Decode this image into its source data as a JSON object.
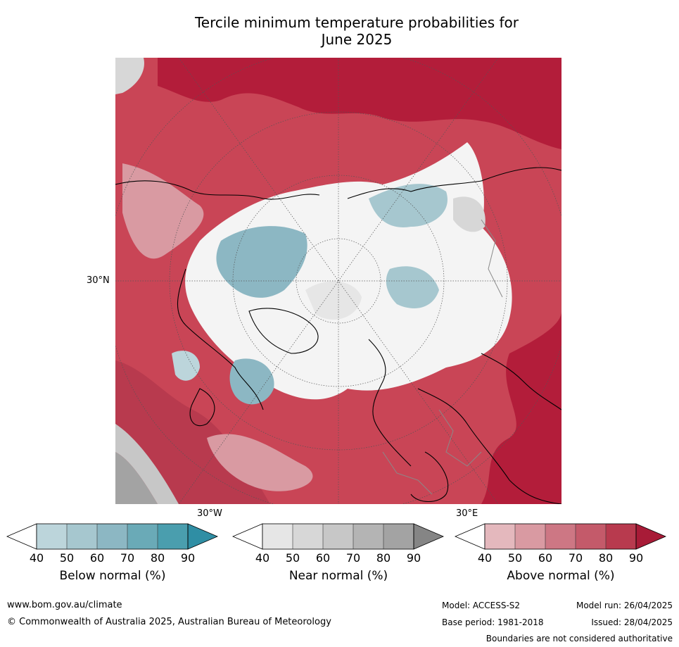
{
  "title": {
    "line1": "Tercile minimum temperature probabilities for",
    "line2": "June 2025"
  },
  "map": {
    "projection": "north-polar-stereographic",
    "region": "Northern Hemisphere",
    "graticule_labels": {
      "left": "30°N",
      "bottom_left": "30°W",
      "bottom_right": "30°E"
    }
  },
  "colorbars": [
    {
      "id": "below",
      "title": "Below normal (%)",
      "ticks": [
        "40",
        "50",
        "60",
        "70",
        "80",
        "90"
      ],
      "colors": [
        "#ffffff",
        "#bcd5db",
        "#a6c7cf",
        "#8cb7c3",
        "#6aaab7",
        "#4a9eae",
        "#2f8ea4"
      ]
    },
    {
      "id": "near",
      "title": "Near normal (%)",
      "ticks": [
        "40",
        "50",
        "60",
        "70",
        "80",
        "90"
      ],
      "colors": [
        "#ffffff",
        "#e6e6e6",
        "#d7d7d7",
        "#c7c7c7",
        "#b4b4b4",
        "#a3a3a3",
        "#858585"
      ]
    },
    {
      "id": "above",
      "title": "Above normal (%)",
      "ticks": [
        "40",
        "50",
        "60",
        "70",
        "80",
        "90"
      ],
      "colors": [
        "#ffffff",
        "#e4b8bd",
        "#d99aa2",
        "#cd7784",
        "#c45a6a",
        "#b83a4e",
        "#a81b37"
      ]
    }
  ],
  "footer": {
    "url": "www.bom.gov.au/climate",
    "copyright": "© Commonwealth of Australia 2025, Australian Bureau of Meteorology",
    "model": "Model: ACCESS-S2",
    "base_period": "Base period: 1981-2018",
    "model_run": "Model run: 26/04/2025",
    "issued": "Issued: 28/04/2025",
    "disclaimer": "Boundaries are not considered authoritative"
  }
}
